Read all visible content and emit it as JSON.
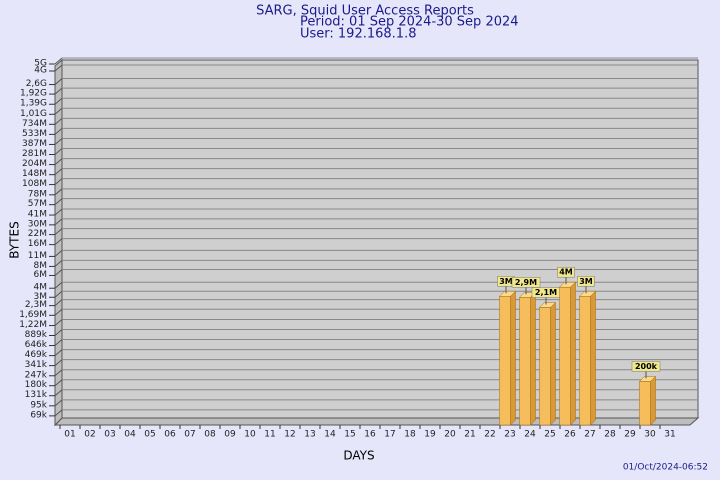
{
  "chart_data": {
    "type": "bar",
    "title": "SARG, Squid User Access Reports",
    "subtitle": "Period: 01 Sep 2024-30 Sep 2024",
    "user": "User: 192.168.1.8",
    "xlabel": "DAYS",
    "ylabel": "BYTES",
    "footer": "01/Oct/2024-06:52",
    "log_scale": true,
    "grid": true,
    "color": "#f5bd5c",
    "categories": [
      "01",
      "02",
      "03",
      "04",
      "05",
      "06",
      "07",
      "08",
      "09",
      "10",
      "11",
      "12",
      "13",
      "14",
      "15",
      "16",
      "17",
      "18",
      "19",
      "20",
      "21",
      "22",
      "23",
      "24",
      "25",
      "26",
      "27",
      "28",
      "29",
      "30",
      "31"
    ],
    "values": [
      null,
      null,
      null,
      null,
      null,
      null,
      null,
      null,
      null,
      null,
      null,
      null,
      null,
      null,
      null,
      null,
      null,
      null,
      null,
      null,
      null,
      null,
      3000000,
      2900000,
      2100000,
      4000000,
      3000000,
      null,
      null,
      200000,
      null
    ],
    "value_labels": [
      null,
      null,
      null,
      null,
      null,
      null,
      null,
      null,
      null,
      null,
      null,
      null,
      null,
      null,
      null,
      null,
      null,
      null,
      null,
      null,
      null,
      null,
      "3M",
      "2,9M",
      "2,1M",
      "4M",
      "3M",
      null,
      null,
      "200k",
      null
    ],
    "ylim": [
      50000,
      5500000000
    ],
    "yticks": [
      {
        "value": 69000,
        "label": "69k"
      },
      {
        "value": 95000,
        "label": "95k"
      },
      {
        "value": 131000,
        "label": "131k"
      },
      {
        "value": 180000,
        "label": "180k"
      },
      {
        "value": 247000,
        "label": "247k"
      },
      {
        "value": 341000,
        "label": "341k"
      },
      {
        "value": 469000,
        "label": "469k"
      },
      {
        "value": 646000,
        "label": "646k"
      },
      {
        "value": 889000,
        "label": "889k"
      },
      {
        "value": 1220000,
        "label": "1,22M"
      },
      {
        "value": 1690000,
        "label": "1,69M"
      },
      {
        "value": 2300000,
        "label": "2,3M"
      },
      {
        "value": 3000000,
        "label": "3M"
      },
      {
        "value": 4000000,
        "label": "4M"
      },
      {
        "value": 6000000,
        "label": "6M"
      },
      {
        "value": 8000000,
        "label": "8M"
      },
      {
        "value": 11000000,
        "label": "11M"
      },
      {
        "value": 16000000,
        "label": "16M"
      },
      {
        "value": 22000000,
        "label": "22M"
      },
      {
        "value": 30000000,
        "label": "30M"
      },
      {
        "value": 41000000,
        "label": "41M"
      },
      {
        "value": 57000000,
        "label": "57M"
      },
      {
        "value": 78000000,
        "label": "78M"
      },
      {
        "value": 108000000,
        "label": "108M"
      },
      {
        "value": 148000000,
        "label": "148M"
      },
      {
        "value": 204000000,
        "label": "204M"
      },
      {
        "value": 281000000,
        "label": "281M"
      },
      {
        "value": 387000000,
        "label": "387M"
      },
      {
        "value": 533000000,
        "label": "533M"
      },
      {
        "value": 734000000,
        "label": "734M"
      },
      {
        "value": 1010000000,
        "label": "1,01G"
      },
      {
        "value": 1390000000,
        "label": "1,39G"
      },
      {
        "value": 1920000000,
        "label": "1,92G"
      },
      {
        "value": 2600000000,
        "label": "2,6G"
      },
      {
        "value": 4000000000,
        "label": "4G"
      },
      {
        "value": 5000000000,
        "label": "5G"
      }
    ]
  }
}
